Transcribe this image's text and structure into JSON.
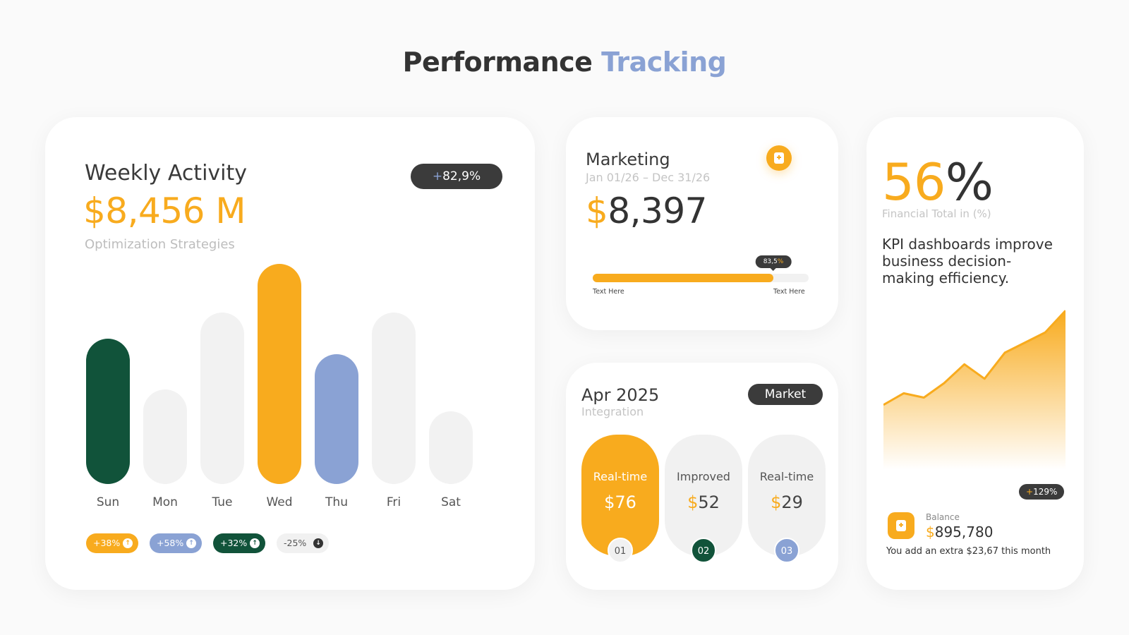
{
  "page_title": {
    "part1": "Performance",
    "part2": "Tracking"
  },
  "weekly": {
    "title": "Weekly Activity",
    "value": "$8,456 M",
    "subtitle": "Optimization Strategies",
    "change_sign": "+",
    "change_value": "82,9%",
    "stats": [
      {
        "label": "+38%",
        "direction": "up",
        "bg": "#f8ab1e",
        "fg": "#ffffff"
      },
      {
        "label": "+58%",
        "direction": "up",
        "bg": "#8aa2d4",
        "fg": "#ffffff"
      },
      {
        "label": "+32%",
        "direction": "up",
        "bg": "#11533a",
        "fg": "#ffffff"
      },
      {
        "label": "-25%",
        "direction": "down",
        "bg": "#f1f1f1",
        "fg": "#555555"
      }
    ]
  },
  "chart_data": {
    "type": "bar",
    "categories": [
      "Sun",
      "Mon",
      "Tue",
      "Wed",
      "Thu",
      "Fri",
      "Sat"
    ],
    "values": [
      66,
      43,
      78,
      100,
      59,
      78,
      33
    ],
    "colors": [
      "#11533a",
      "#f2f2f2",
      "#f2f2f2",
      "#f8ab1e",
      "#8aa2d4",
      "#f2f2f2",
      "#f2f2f2"
    ]
  },
  "marketing": {
    "title": "Marketing",
    "dates": "Jan 01/26 – Dec 31/26",
    "currency": "$",
    "amount": "8,397",
    "progress_percent": 83.5,
    "progress_label": "83,5",
    "progress_pct_sign": "%",
    "label_left": "Text Here",
    "label_right": "Text Here",
    "icon": "document-add-icon"
  },
  "apr": {
    "title": "Apr 2025",
    "subtitle": "Integration",
    "badge": "Market",
    "tiles": [
      {
        "label": "Real-time",
        "currency": "$",
        "value": "76",
        "num": "01",
        "active": true,
        "num_bg": "#f1f1f1",
        "num_fg": "#555555"
      },
      {
        "label": "Improved",
        "currency": "$",
        "value": "52",
        "num": "02",
        "active": false,
        "num_bg": "#11533a",
        "num_fg": "#ffffff"
      },
      {
        "label": "Real-time",
        "currency": "$",
        "value": "29",
        "num": "03",
        "active": false,
        "num_bg": "#8aa2d4",
        "num_fg": "#ffffff"
      }
    ]
  },
  "kpi": {
    "pct_num": "56",
    "pct_sign": "%",
    "fin_label": "Financial Total in (%)",
    "text": "KPI dashboards improve business decision-making efficiency.",
    "trend": [
      40,
      48,
      45,
      55,
      68,
      58,
      76,
      83,
      90,
      105
    ],
    "growth_sign": "+",
    "growth_value": "129%",
    "balance_label": "Balance",
    "balance_currency": "$",
    "balance_value": "895,780",
    "balance_note": "You add an extra $23,67 this month",
    "icon": "document-add-icon"
  },
  "colors": {
    "accent": "#f8ab1e",
    "blue": "#8aa2d4",
    "green": "#11533a",
    "dark": "#3b3b3b"
  }
}
